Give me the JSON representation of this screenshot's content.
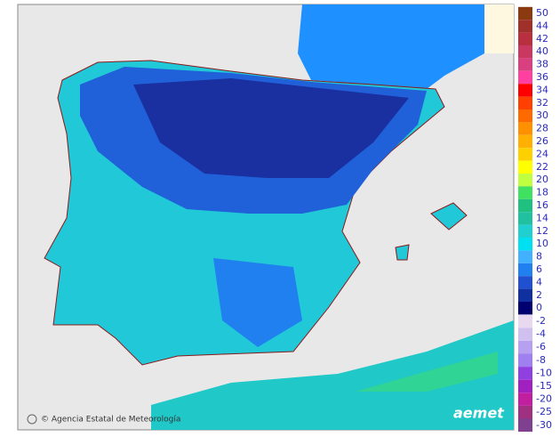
{
  "legend": {
    "items": [
      {
        "label": "50",
        "color": "#8b3a0f"
      },
      {
        "label": "44",
        "color": "#a0302a"
      },
      {
        "label": "42",
        "color": "#b83040"
      },
      {
        "label": "40",
        "color": "#c83860"
      },
      {
        "label": "38",
        "color": "#d84080"
      },
      {
        "label": "36",
        "color": "#ff40a0"
      },
      {
        "label": "34",
        "color": "#ff0000"
      },
      {
        "label": "32",
        "color": "#ff4000"
      },
      {
        "label": "30",
        "color": "#ff6a00"
      },
      {
        "label": "28",
        "color": "#ff9000"
      },
      {
        "label": "26",
        "color": "#ffb000"
      },
      {
        "label": "24",
        "color": "#ffd000"
      },
      {
        "label": "22",
        "color": "#ffff00"
      },
      {
        "label": "20",
        "color": "#c0ff40"
      },
      {
        "label": "18",
        "color": "#40e060"
      },
      {
        "label": "16",
        "color": "#20c080"
      },
      {
        "label": "14",
        "color": "#20c0a0"
      },
      {
        "label": "12",
        "color": "#20d0d0"
      },
      {
        "label": "10",
        "color": "#00e0f0"
      },
      {
        "label": "8",
        "color": "#40b0ff"
      },
      {
        "label": "6",
        "color": "#2080f0"
      },
      {
        "label": "4",
        "color": "#2050d0"
      },
      {
        "label": "2",
        "color": "#1030a0"
      },
      {
        "label": "0",
        "color": "#000070"
      }
    ],
    "negative": [
      {
        "label": "-2",
        "color": "#e8d8f0"
      },
      {
        "label": "-4",
        "color": "#d0c0f0"
      },
      {
        "label": "-6",
        "color": "#b8a0f0"
      },
      {
        "label": "-8",
        "color": "#a080f0"
      },
      {
        "label": "-10",
        "color": "#9040e0"
      },
      {
        "label": "-15",
        "color": "#a020c0"
      },
      {
        "label": "-20",
        "color": "#c020a0"
      },
      {
        "label": "-25",
        "color": "#a03080"
      },
      {
        "label": "-30",
        "color": "#804090"
      }
    ]
  },
  "credit": "© Agencia Estatal de Meteorología",
  "logo": "aemet"
}
